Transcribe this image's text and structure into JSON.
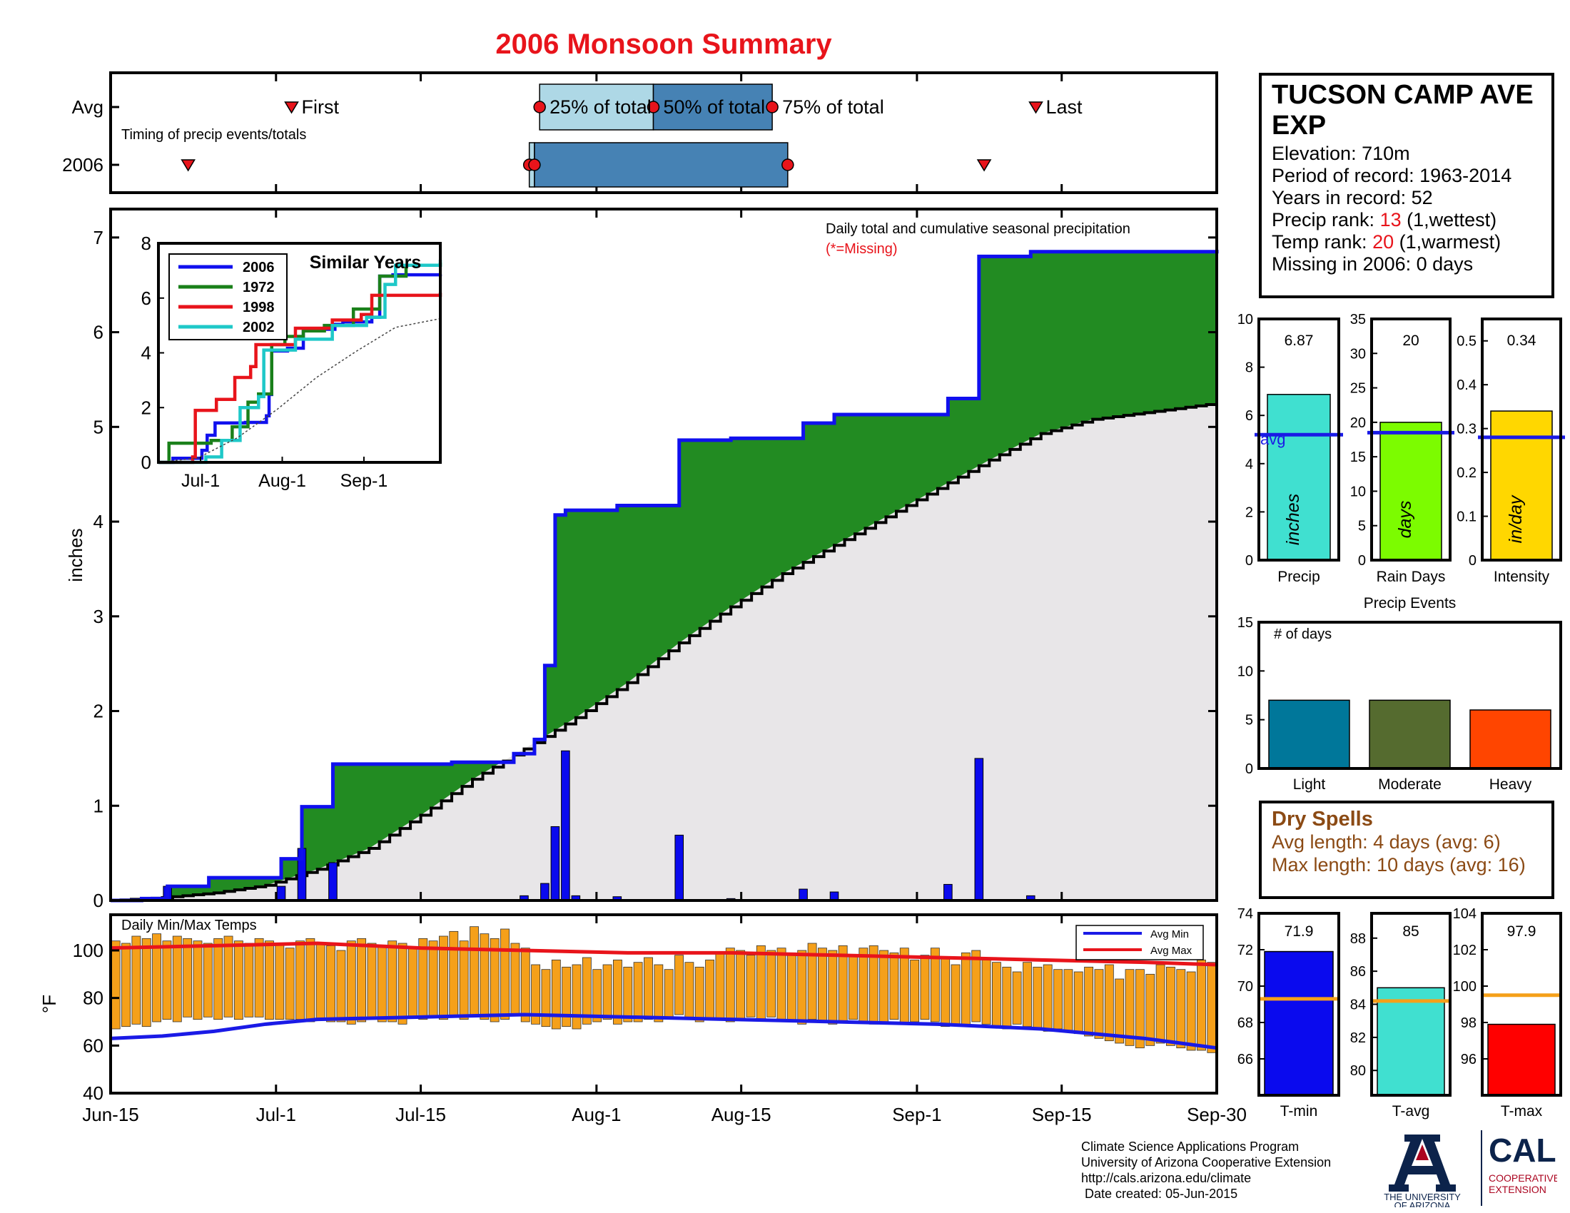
{
  "title": "2006 Monsoon Summary",
  "timing": {
    "row_labels": [
      "Avg",
      "2006"
    ],
    "subtitle": "Timing of precip events/totals",
    "labels": {
      "first": "First",
      "p25": "25% of total",
      "p50": "50% of total",
      "p75": "75% of total",
      "last": "Last"
    },
    "avg": {
      "first": 17.5,
      "p25": 41.5,
      "p50": 52.5,
      "p75": 64,
      "last": 89.5
    },
    "year": {
      "first": 7.5,
      "p25": 40.5,
      "p50": 41,
      "p75": 65.5,
      "last": 84.5
    }
  },
  "station": {
    "name": "TUCSON CAMP AVE EXP",
    "elevation_label": "Elevation: 710m",
    "period_label": "Period of record: 1963-2014",
    "years_label": "Years in record: 52",
    "precip_rank_prefix": "Precip rank: ",
    "precip_rank_value": "13",
    "precip_rank_suffix": " (1,wettest)",
    "temp_rank_prefix": "Temp rank: ",
    "temp_rank_value": "20",
    "temp_rank_suffix": " (1,warmest)",
    "missing_label": "Missing in 2006: 0 days"
  },
  "dry_spells": {
    "title": "Dry Spells",
    "avg_length": "Avg length: 4 days (avg: 6)",
    "max_length": "Max length: 10 days (avg: 16)"
  },
  "footer": {
    "line1": "Climate Science Applications Program",
    "line2": "University of Arizona Cooperative Extension",
    "line3": "http://cals.arizona.edu/climate",
    "line4": " Date created: 05-Jun-2015",
    "ua_lines": [
      "THE UNIVERSITY",
      "OF ARIZONA"
    ],
    "cals_lines": [
      "CALS",
      "COOPERATIVE",
      "EXTENSION"
    ]
  },
  "colors": {
    "title": "#e8141b",
    "year_line": "#1010ee",
    "surplus": "#228b22",
    "climo_fill": "#e8e6e8",
    "daily_bar": "#0a0aee",
    "temp_bar": "#f5a01a",
    "avg_min": "#1a1ae6",
    "avg_max": "#e8141b",
    "light_blue": "#aed8e6",
    "steel_blue": "#4682b4",
    "marker": "#e8141b"
  },
  "chart_data": [
    {
      "type": "area",
      "name": "main",
      "annotation": "Daily total and cumulative seasonal precipitation",
      "missing_note": "(*=Missing)",
      "ylabel": "inches",
      "ylim": [
        0,
        7.3
      ],
      "yticks": [
        0,
        1,
        2,
        3,
        4,
        5,
        6,
        7
      ],
      "xlim": [
        0,
        107
      ],
      "xticks": [
        {
          "d": 0,
          "label": "Jun-15"
        },
        {
          "d": 16,
          "label": "Jul-1"
        },
        {
          "d": 30,
          "label": "Jul-15"
        },
        {
          "d": 47,
          "label": "Aug-1"
        },
        {
          "d": 61,
          "label": "Aug-15"
        },
        {
          "d": 78,
          "label": "Sep-1"
        },
        {
          "d": 92,
          "label": "Sep-15"
        },
        {
          "d": 107,
          "label": "Sep-30"
        }
      ],
      "daily_precip": [
        [
          5.5,
          0.15
        ],
        [
          16.5,
          0.15
        ],
        [
          18.5,
          0.55
        ],
        [
          21.5,
          0.4
        ],
        [
          40,
          0.05
        ],
        [
          42,
          0.18
        ],
        [
          43,
          0.78
        ],
        [
          44,
          1.58
        ],
        [
          45,
          0.05
        ],
        [
          49,
          0.04
        ],
        [
          55,
          0.69
        ],
        [
          60,
          0.02
        ],
        [
          67,
          0.12
        ],
        [
          70,
          0.09
        ],
        [
          81,
          0.17
        ],
        [
          84,
          1.5
        ],
        [
          89,
          0.05
        ]
      ],
      "cumulative_2006": [
        [
          0,
          0
        ],
        [
          3,
          0.02
        ],
        [
          5.5,
          0.15
        ],
        [
          9.5,
          0.24
        ],
        [
          16.5,
          0.44
        ],
        [
          18.5,
          0.99
        ],
        [
          21.5,
          1.44
        ],
        [
          33,
          1.46
        ],
        [
          39,
          1.55
        ],
        [
          41,
          1.7
        ],
        [
          42,
          2.48
        ],
        [
          43,
          4.07
        ],
        [
          44,
          4.12
        ],
        [
          49,
          4.17
        ],
        [
          55,
          4.86
        ],
        [
          60,
          4.88
        ],
        [
          67,
          5.04
        ],
        [
          70,
          5.13
        ],
        [
          81,
          5.3
        ],
        [
          84,
          6.8
        ],
        [
          89,
          6.85
        ],
        [
          107,
          6.87
        ]
      ],
      "cumulative_avg": [
        [
          0,
          0
        ],
        [
          5,
          0.03
        ],
        [
          10,
          0.08
        ],
        [
          15,
          0.16
        ],
        [
          20,
          0.33
        ],
        [
          25,
          0.55
        ],
        [
          30,
          0.9
        ],
        [
          35,
          1.28
        ],
        [
          40,
          1.6
        ],
        [
          45,
          1.93
        ],
        [
          50,
          2.3
        ],
        [
          55,
          2.72
        ],
        [
          60,
          3.1
        ],
        [
          65,
          3.45
        ],
        [
          70,
          3.75
        ],
        [
          75,
          4.05
        ],
        [
          80,
          4.35
        ],
        [
          85,
          4.65
        ],
        [
          90,
          4.93
        ],
        [
          95,
          5.08
        ],
        [
          100,
          5.15
        ],
        [
          107,
          5.25
        ]
      ]
    },
    {
      "type": "line",
      "name": "similar_years",
      "title": "Similar Years",
      "ylim": [
        0,
        8
      ],
      "yticks": [
        0,
        2,
        4,
        6,
        8
      ],
      "xlim": [
        0,
        107
      ],
      "xticks": [
        {
          "d": 16,
          "label": "Jul-1"
        },
        {
          "d": 47,
          "label": "Aug-1"
        },
        {
          "d": 78,
          "label": "Sep-1"
        }
      ],
      "series": [
        {
          "name": "2006",
          "color": "#1010ee",
          "points": [
            [
              0,
              0
            ],
            [
              5.5,
              0.15
            ],
            [
              16.5,
              0.44
            ],
            [
              18.5,
              0.99
            ],
            [
              21.5,
              1.44
            ],
            [
              33,
              1.46
            ],
            [
              41,
              1.7
            ],
            [
              42,
              2.48
            ],
            [
              43,
              4.07
            ],
            [
              49,
              4.17
            ],
            [
              55,
              4.86
            ],
            [
              67,
              5.04
            ],
            [
              70,
              5.13
            ],
            [
              81,
              5.3
            ],
            [
              84,
              6.8
            ],
            [
              89,
              6.85
            ],
            [
              107,
              6.87
            ]
          ]
        },
        {
          "name": "1972",
          "color": "#1a801a",
          "points": [
            [
              0,
              0
            ],
            [
              4,
              0.7
            ],
            [
              20,
              0.8
            ],
            [
              28,
              1.3
            ],
            [
              34,
              2.2
            ],
            [
              38,
              2.5
            ],
            [
              43,
              4.3
            ],
            [
              48,
              4.6
            ],
            [
              55,
              4.8
            ],
            [
              63,
              5.0
            ],
            [
              74,
              5.6
            ],
            [
              84,
              6.8
            ],
            [
              94,
              7.2
            ],
            [
              107,
              7.3
            ]
          ]
        },
        {
          "name": "1998",
          "color": "#e8141b",
          "points": [
            [
              0,
              0
            ],
            [
              13,
              0.2
            ],
            [
              14,
              1.9
            ],
            [
              22,
              2.3
            ],
            [
              29,
              3.1
            ],
            [
              35,
              3.5
            ],
            [
              37,
              4.3
            ],
            [
              52,
              4.9
            ],
            [
              66,
              5.2
            ],
            [
              77,
              5.4
            ],
            [
              81,
              6.1
            ],
            [
              107,
              6.2
            ]
          ]
        },
        {
          "name": "2002",
          "color": "#1ec8c8",
          "points": [
            [
              0,
              0
            ],
            [
              18,
              0.2
            ],
            [
              24,
              0.8
            ],
            [
              31,
              2.0
            ],
            [
              38,
              2.4
            ],
            [
              40,
              4.1
            ],
            [
              52,
              4.5
            ],
            [
              66,
              5.0
            ],
            [
              79,
              5.3
            ],
            [
              86,
              6.5
            ],
            [
              90,
              7.2
            ],
            [
              107,
              7.4
            ]
          ]
        },
        {
          "name": "avg",
          "color": "#444444",
          "points": [
            [
              0,
              0
            ],
            [
              15,
              0.16
            ],
            [
              30,
              0.9
            ],
            [
              45,
              1.93
            ],
            [
              60,
              3.1
            ],
            [
              75,
              4.05
            ],
            [
              90,
              4.93
            ],
            [
              107,
              5.25
            ]
          ]
        }
      ]
    },
    {
      "type": "bar",
      "name": "temps",
      "title": "Daily Min/Max Temps",
      "ylabel": "°F",
      "ylim": [
        40,
        115
      ],
      "yticks": [
        40,
        60,
        80,
        100
      ],
      "legend": [
        "Avg Min",
        "Avg Max"
      ],
      "legend_position": "top-right",
      "daily_max": [
        104,
        103,
        106,
        105,
        107,
        104,
        106,
        105,
        104,
        103,
        105,
        106,
        104,
        103,
        105,
        104,
        103,
        101,
        104,
        105,
        103,
        102,
        100,
        104,
        105,
        103,
        102,
        104,
        103,
        101,
        105,
        104,
        106,
        108,
        104,
        110,
        107,
        105,
        109,
        103,
        101,
        94,
        92,
        96,
        93,
        94,
        97,
        92,
        94,
        96,
        93,
        95,
        97,
        94,
        92,
        98,
        95,
        93,
        96,
        99,
        101,
        100,
        98,
        102,
        100,
        101,
        99,
        100,
        103,
        101,
        100,
        102,
        98,
        101,
        102,
        100,
        99,
        101,
        96,
        98,
        101,
        97,
        94,
        99,
        100,
        96,
        95,
        93,
        91,
        95,
        93,
        94,
        92,
        92,
        91,
        93,
        92,
        94,
        88,
        92,
        92,
        90,
        94,
        93,
        92,
        91,
        96,
        95
      ],
      "daily_min": [
        67,
        68,
        69,
        68,
        70,
        71,
        70,
        72,
        71,
        72,
        71,
        72,
        71,
        72,
        72,
        71,
        71,
        71,
        71,
        70,
        71,
        70,
        70,
        69,
        70,
        71,
        70,
        70,
        69,
        72,
        71,
        72,
        71,
        72,
        71,
        72,
        71,
        70,
        71,
        73,
        70,
        69,
        68,
        67,
        68,
        67,
        69,
        70,
        71,
        69,
        70,
        70,
        71,
        70,
        72,
        73,
        72,
        70,
        71,
        71,
        70,
        71,
        72,
        71,
        72,
        71,
        70,
        69,
        71,
        70,
        69,
        70,
        71,
        70,
        69,
        70,
        71,
        69,
        70,
        71,
        70,
        68,
        69,
        68,
        70,
        69,
        68,
        67,
        69,
        68,
        67,
        66,
        67,
        66,
        65,
        64,
        63,
        62,
        61,
        60,
        59,
        60,
        61,
        60,
        59,
        58,
        58,
        57
      ],
      "avg_max": [
        [
          0,
          101
        ],
        [
          10,
          102
        ],
        [
          20,
          103
        ],
        [
          30,
          101
        ],
        [
          40,
          100
        ],
        [
          50,
          99
        ],
        [
          60,
          99
        ],
        [
          70,
          98
        ],
        [
          80,
          97
        ],
        [
          90,
          96
        ],
        [
          100,
          95
        ],
        [
          107,
          94
        ]
      ],
      "avg_min": [
        [
          0,
          63
        ],
        [
          5,
          64
        ],
        [
          10,
          66
        ],
        [
          15,
          69
        ],
        [
          20,
          71
        ],
        [
          30,
          72
        ],
        [
          40,
          73
        ],
        [
          50,
          72
        ],
        [
          60,
          71
        ],
        [
          70,
          70
        ],
        [
          80,
          69
        ],
        [
          90,
          67
        ],
        [
          100,
          63
        ],
        [
          107,
          59
        ]
      ]
    },
    {
      "type": "bar",
      "name": "season_summary",
      "panels": [
        {
          "label": "Precip",
          "unit": "inches",
          "value": 6.87,
          "value_label": "6.87",
          "avg": 5.2,
          "avg_label": "avg",
          "ylim": [
            0,
            10
          ],
          "yticks": [
            0,
            2,
            4,
            6,
            8,
            10
          ],
          "color": "#40e0d0",
          "avg_color": "#1a1ae6"
        },
        {
          "label": "Rain Days",
          "unit": "days",
          "value": 20,
          "value_label": "20",
          "avg": 18.5,
          "ylim": [
            0,
            35
          ],
          "yticks": [
            0,
            5,
            10,
            15,
            20,
            25,
            30,
            35
          ],
          "color": "#7cfc00",
          "avg_color": "#1a1ae6"
        },
        {
          "label": "Intensity",
          "unit": "in/day",
          "value": 0.34,
          "value_label": "0.34",
          "avg": 0.28,
          "ylim": [
            0,
            0.55
          ],
          "yticks": [
            0,
            0.1,
            0.2,
            0.3,
            0.4,
            0.5
          ],
          "color": "#ffd700",
          "avg_color": "#1a1ae6"
        }
      ]
    },
    {
      "type": "bar",
      "name": "precip_events",
      "title": "Precip Events",
      "inner_label": "# of days",
      "categories": [
        "Light",
        "Moderate",
        "Heavy"
      ],
      "values": [
        7,
        7,
        6
      ],
      "colors": [
        "#00779a",
        "#556b2f",
        "#ff4500"
      ],
      "ylim": [
        0,
        15
      ],
      "yticks": [
        0,
        5,
        10,
        15
      ]
    },
    {
      "type": "bar",
      "name": "temp_summary",
      "panels": [
        {
          "label": "T-min",
          "value": 71.9,
          "value_label": "71.9",
          "avg": 69.3,
          "ylim": [
            64,
            74
          ],
          "yticks": [
            66,
            68,
            70,
            72,
            74
          ],
          "color": "#0a0aee",
          "avg_color": "#f5a01a"
        },
        {
          "label": "T-avg",
          "value": 85,
          "value_label": "85",
          "avg": 84.2,
          "ylim": [
            78.5,
            89.5
          ],
          "yticks": [
            80,
            82,
            84,
            86,
            88
          ],
          "color": "#40e0d0",
          "avg_color": "#f5a01a"
        },
        {
          "label": "T-max",
          "value": 97.9,
          "value_label": "97.9",
          "avg": 99.5,
          "ylim": [
            94,
            104
          ],
          "yticks": [
            96,
            98,
            100,
            102,
            104
          ],
          "color": "#ff0000",
          "avg_color": "#f5a01a"
        }
      ]
    }
  ]
}
